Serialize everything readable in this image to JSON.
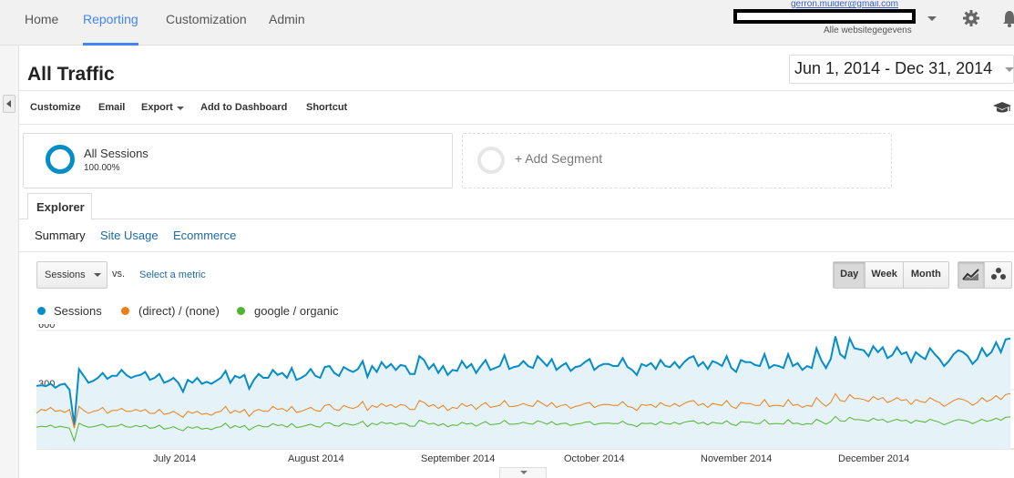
{
  "nav": {
    "items": [
      "Home",
      "Reporting",
      "Customization",
      "Admin"
    ],
    "active": "Reporting"
  },
  "account": {
    "email": "gerron.mulder@gmail.com",
    "property": "Alle websitegegevens"
  },
  "icons": {
    "settings": "gear-icon",
    "notifications": "bell-icon",
    "collapse": "chevron-left-icon",
    "academy": "graduation-cap-icon",
    "line_chart": "line-chart-icon",
    "motion_chart": "bubble-chart-icon"
  },
  "page": {
    "title": "All Traffic",
    "date_range": "Jun 1, 2014 - Dec 31, 2014"
  },
  "toolbar": {
    "customize": "Customize",
    "email": "Email",
    "export": "Export",
    "add_to_dashboard": "Add to Dashboard",
    "shortcut": "Shortcut"
  },
  "segments": {
    "active": {
      "name": "All Sessions",
      "percent": "100.00%"
    },
    "add_label": "+ Add Segment"
  },
  "tabs": {
    "main": "Explorer",
    "sub": [
      "Summary",
      "Site Usage",
      "Ecommerce"
    ]
  },
  "controls": {
    "metric": "Sessions",
    "vs": "vs.",
    "select_metric": "Select a metric",
    "granularity": [
      "Day",
      "Week",
      "Month"
    ],
    "active_granularity": "Day"
  },
  "colors": {
    "sessions": "#058dc7",
    "direct": "#ed7e17",
    "organic": "#50b432",
    "accent": "#4285f4"
  },
  "chart_data": {
    "type": "line",
    "y_ticks": [
      "600",
      "300"
    ],
    "ylim": [
      0,
      600
    ],
    "x_labels": [
      "July 2014",
      "August 2014",
      "September 2014",
      "October 2014",
      "November 2014",
      "December 2014"
    ],
    "x_start": "2014-06-01",
    "x_end": "2014-12-31",
    "grid": true,
    "legend": "top-left",
    "series": [
      {
        "name": "Sessions",
        "values": [
          320,
          322,
          318,
          330,
          310,
          325,
          330,
          300,
          120,
          405,
          370,
          335,
          345,
          360,
          385,
          355,
          370,
          370,
          400,
          375,
          360,
          370,
          375,
          390,
          350,
          360,
          380,
          335,
          345,
          360,
          335,
          290,
          350,
          335,
          360,
          330,
          340,
          330,
          345,
          360,
          395,
          335,
          370,
          360,
          375,
          305,
          350,
          380,
          360,
          360,
          400,
          375,
          385,
          360,
          410,
          350,
          360,
          375,
          405,
          370,
          360,
          415,
          420,
          385,
          370,
          415,
          400,
          390,
          405,
          445,
          365,
          420,
          390,
          440,
          410,
          430,
          400,
          425,
          420,
          380,
          380,
          470,
          450,
          405,
          430,
          385,
          420,
          375,
          400,
          395,
          445,
          410,
          430,
          385,
          420,
          450,
          400,
          410,
          420,
          475,
          405,
          415,
          420,
          445,
          420,
          410,
          470,
          445,
          420,
          455,
          400,
          420,
          435,
          395,
          415,
          420,
          440,
          455,
          400,
          420,
          430,
          430,
          420,
          420,
          460,
          415,
          400,
          375,
          430,
          420,
          435,
          405,
          450,
          420,
          415,
          440,
          410,
          440,
          460,
          470,
          420,
          440,
          405,
          445,
          435,
          420,
          470,
          410,
          390,
          450,
          440,
          440,
          425,
          420,
          480,
          410,
          425,
          420,
          410,
          480,
          420,
          435,
          400,
          420,
          410,
          510,
          450,
          410,
          455,
          570,
          480,
          460,
          560,
          510,
          505,
          500,
          470,
          520,
          490,
          515,
          460,
          475,
          515,
          480,
          490,
          440,
          490,
          470,
          455,
          510,
          480,
          455,
          420,
          445,
          480,
          500,
          490,
          470,
          430,
          455,
          510,
          470,
          490,
          540,
          490,
          555,
          560
        ]
      },
      {
        "name": "(direct) / (none)",
        "values": [
          180,
          200,
          195,
          210,
          190,
          195,
          185,
          200,
          105,
          215,
          195,
          180,
          190,
          195,
          210,
          180,
          195,
          195,
          205,
          190,
          190,
          200,
          190,
          200,
          180,
          180,
          200,
          175,
          180,
          190,
          175,
          160,
          190,
          180,
          190,
          175,
          180,
          170,
          185,
          190,
          215,
          180,
          195,
          185,
          200,
          165,
          190,
          200,
          190,
          190,
          215,
          200,
          205,
          190,
          215,
          185,
          190,
          200,
          210,
          195,
          190,
          220,
          225,
          200,
          195,
          220,
          210,
          205,
          215,
          240,
          195,
          220,
          210,
          230,
          215,
          225,
          210,
          225,
          220,
          200,
          200,
          245,
          235,
          215,
          225,
          205,
          220,
          195,
          210,
          205,
          230,
          215,
          225,
          200,
          220,
          235,
          210,
          215,
          220,
          245,
          215,
          215,
          220,
          230,
          220,
          215,
          245,
          230,
          215,
          235,
          210,
          220,
          225,
          205,
          215,
          220,
          230,
          235,
          210,
          220,
          225,
          225,
          220,
          220,
          240,
          215,
          210,
          195,
          225,
          220,
          225,
          210,
          235,
          220,
          215,
          230,
          215,
          230,
          240,
          245,
          220,
          230,
          210,
          230,
          225,
          220,
          245,
          215,
          205,
          235,
          230,
          230,
          220,
          220,
          250,
          215,
          220,
          220,
          215,
          250,
          220,
          225,
          210,
          220,
          215,
          260,
          235,
          215,
          235,
          280,
          245,
          240,
          275,
          255,
          255,
          250,
          240,
          265,
          250,
          260,
          235,
          245,
          260,
          245,
          250,
          225,
          250,
          240,
          235,
          260,
          245,
          235,
          215,
          230,
          245,
          255,
          250,
          240,
          220,
          235,
          260,
          240,
          250,
          270,
          250,
          275,
          280
        ]
      },
      {
        "name": "google / organic",
        "values": [
          110,
          115,
          112,
          120,
          108,
          115,
          110,
          105,
          40,
          130,
          118,
          110,
          112,
          118,
          125,
          110,
          115,
          115,
          125,
          112,
          110,
          118,
          112,
          120,
          105,
          108,
          120,
          100,
          105,
          112,
          100,
          92,
          112,
          105,
          112,
          100,
          105,
          98,
          108,
          112,
          130,
          105,
          118,
          108,
          118,
          95,
          110,
          120,
          112,
          112,
          128,
          118,
          122,
          110,
          128,
          108,
          112,
          118,
          125,
          115,
          110,
          130,
          132,
          118,
          115,
          130,
          125,
          120,
          128,
          140,
          112,
          130,
          122,
          136,
          128,
          132,
          122,
          130,
          128,
          115,
          115,
          145,
          138,
          125,
          130,
          118,
          128,
          112,
          122,
          118,
          135,
          125,
          130,
          115,
          128,
          138,
          122,
          125,
          128,
          145,
          125,
          125,
          128,
          135,
          128,
          125,
          142,
          135,
          125,
          138,
          122,
          128,
          130,
          118,
          125,
          128,
          135,
          138,
          122,
          128,
          130,
          130,
          128,
          128,
          140,
          125,
          122,
          112,
          130,
          128,
          130,
          122,
          138,
          128,
          125,
          135,
          125,
          135,
          140,
          142,
          128,
          135,
          122,
          135,
          130,
          128,
          142,
          125,
          118,
          138,
          135,
          135,
          128,
          128,
          148,
          125,
          128,
          128,
          125,
          148,
          128,
          130,
          122,
          128,
          125,
          150,
          138,
          125,
          138,
          165,
          142,
          140,
          160,
          148,
          148,
          145,
          140,
          155,
          145,
          150,
          135,
          142,
          150,
          142,
          145,
          130,
          145,
          140,
          135,
          150,
          142,
          135,
          122,
          132,
          142,
          148,
          145,
          140,
          128,
          138,
          150,
          140,
          145,
          155,
          145,
          160,
          162
        ]
      }
    ]
  }
}
